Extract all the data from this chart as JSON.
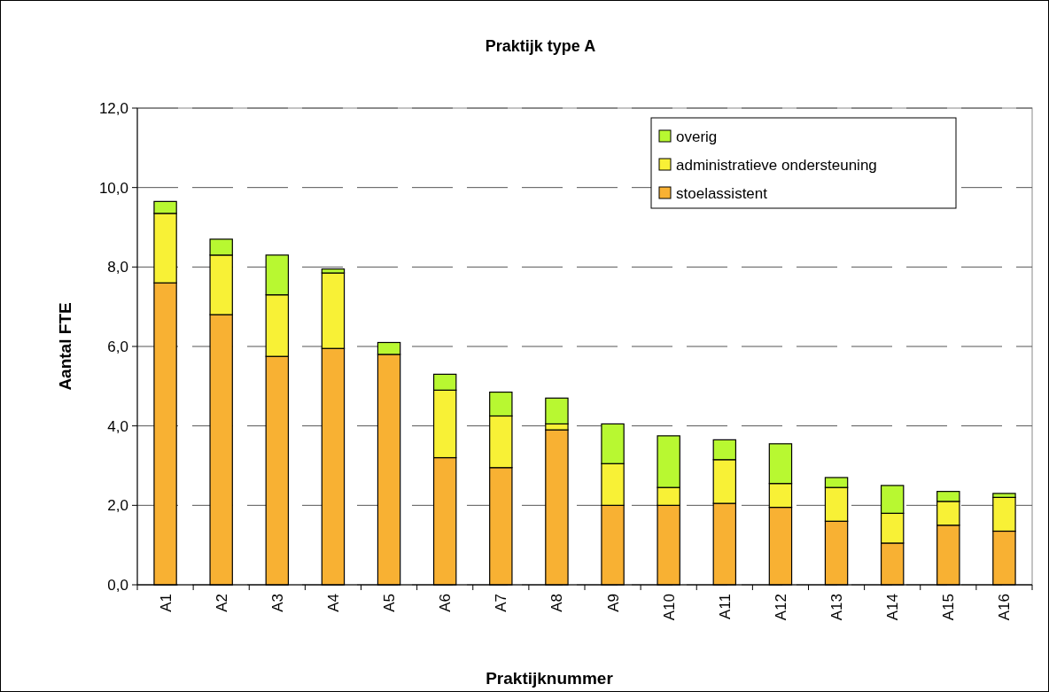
{
  "chart_data": {
    "type": "bar",
    "stacked": true,
    "title": "Praktijk type A",
    "xlabel": "Praktijknummer",
    "ylabel": "Aantal FTE",
    "categories": [
      "A1",
      "A2",
      "A3",
      "A4",
      "A5",
      "A6",
      "A7",
      "A8",
      "A9",
      "A10",
      "A11",
      "A12",
      "A13",
      "A14",
      "A15",
      "A16"
    ],
    "series": [
      {
        "name": "stoelassistent",
        "color": "#f8b133",
        "values": [
          7.6,
          6.8,
          5.75,
          5.95,
          5.8,
          3.2,
          2.95,
          3.9,
          2.0,
          2.0,
          2.05,
          1.95,
          1.6,
          1.05,
          1.5,
          1.35
        ]
      },
      {
        "name": "administratieve ondersteuning",
        "color": "#f8f136",
        "values": [
          1.75,
          1.5,
          1.55,
          1.9,
          0,
          1.7,
          1.3,
          0.15,
          1.05,
          0.45,
          1.1,
          0.6,
          0.85,
          0.75,
          0.6,
          0.85
        ]
      },
      {
        "name": "overig",
        "color": "#b8f831",
        "values": [
          0.3,
          0.4,
          1.0,
          0.1,
          0.3,
          0.4,
          0.6,
          0.65,
          1.0,
          1.3,
          0.5,
          1.0,
          0.25,
          0.7,
          0.25,
          0.1
        ]
      }
    ],
    "ylim": [
      0,
      12
    ],
    "yticks": [
      {
        "value": 0,
        "label": "0,0"
      },
      {
        "value": 2,
        "label": "2,0"
      },
      {
        "value": 4,
        "label": "4,0"
      },
      {
        "value": 6,
        "label": "6,0"
      },
      {
        "value": 8,
        "label": "8,0"
      },
      {
        "value": 10,
        "label": "10,0"
      },
      {
        "value": 12,
        "label": "12,0"
      }
    ],
    "grid": "y",
    "legend": "top right"
  }
}
